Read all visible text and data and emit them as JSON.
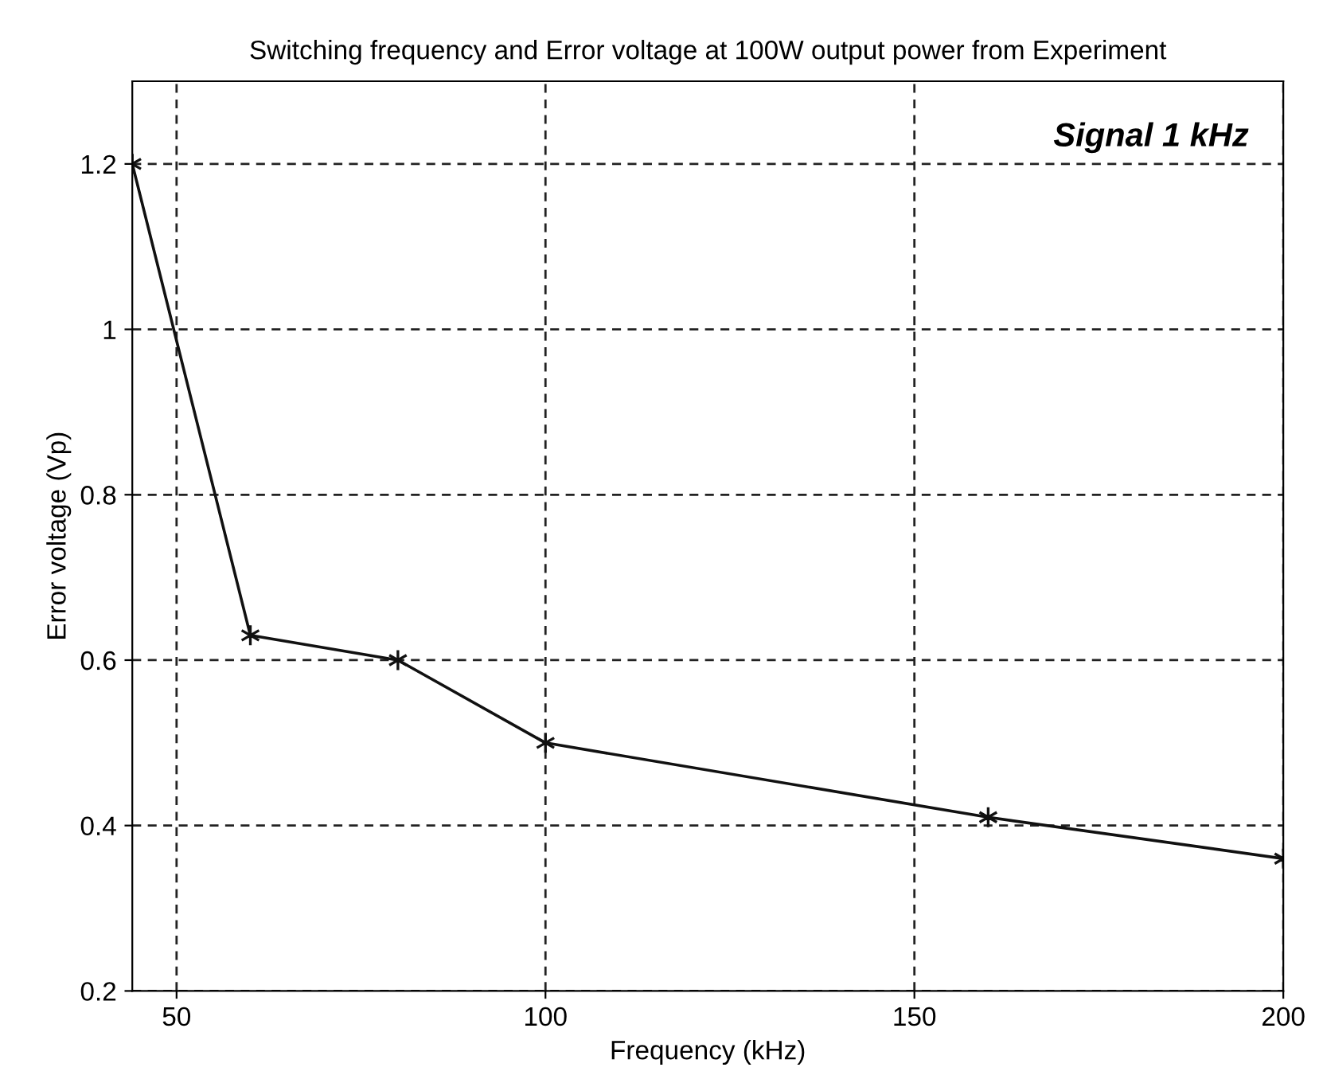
{
  "chart_data": {
    "type": "line",
    "title": "Switching frequency and Error voltage at 100W output power from Experiment",
    "xlabel": "Frequency (kHz)",
    "ylabel": "Error voltage (Vp)",
    "annotations": [
      "Signal 1 kHz"
    ],
    "x": [
      44,
      60,
      80,
      100,
      160,
      200
    ],
    "series": [
      {
        "color": "#111111",
        "values": [
          1.2,
          0.63,
          0.6,
          0.5,
          0.41,
          0.36
        ]
      }
    ],
    "xlim": [
      44,
      200
    ],
    "xticks": [
      50,
      100,
      150,
      200
    ],
    "ylim": [
      0.2,
      1.3
    ],
    "yticks": [
      0.2,
      0.4,
      0.6,
      0.8,
      1,
      1.2
    ],
    "grid": true,
    "marker": "cross",
    "line_style": "solid",
    "legend": false
  }
}
